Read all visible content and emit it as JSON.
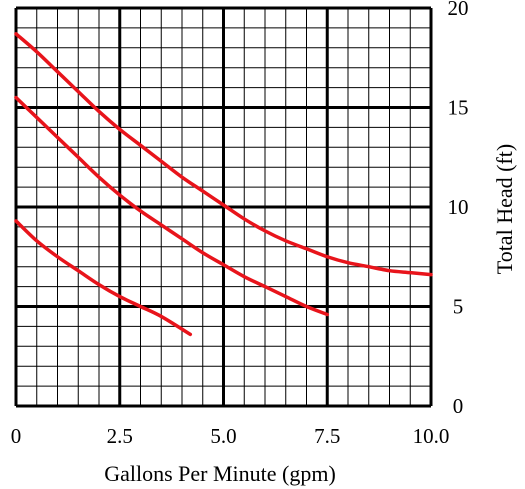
{
  "chart_data": {
    "type": "line",
    "xlabel": "Gallons Per Minute (gpm)",
    "ylabel": "Total Head (ft)",
    "xlim": [
      0,
      10
    ],
    "ylim": [
      0,
      20
    ],
    "x_ticks": [
      "0",
      "2.5",
      "5.0",
      "7.5",
      "10.0"
    ],
    "y_ticks": [
      "0",
      "5",
      "10",
      "15",
      "20"
    ],
    "grid": true,
    "line_color": "#e8141b",
    "series": [
      {
        "x": [
          0,
          0.5,
          1.0,
          1.5,
          2.0,
          2.5,
          3.0,
          3.5,
          4.0,
          4.5,
          5.0,
          5.5,
          6.0,
          6.5,
          7.0,
          7.5,
          8.0,
          8.5,
          9.0,
          9.5,
          10.0
        ],
        "y": [
          18.7,
          17.8,
          16.8,
          15.8,
          14.8,
          13.9,
          13.1,
          12.3,
          11.5,
          10.8,
          10.1,
          9.4,
          8.8,
          8.3,
          7.9,
          7.5,
          7.2,
          7.0,
          6.8,
          6.7,
          6.6
        ]
      },
      {
        "x": [
          0,
          0.5,
          1.0,
          1.5,
          2.0,
          2.5,
          3.0,
          3.5,
          4.0,
          4.5,
          5.0,
          5.5,
          6.0,
          6.5,
          7.0,
          7.5
        ],
        "y": [
          15.5,
          14.5,
          13.5,
          12.5,
          11.5,
          10.6,
          9.8,
          9.1,
          8.4,
          7.7,
          7.1,
          6.5,
          6.0,
          5.5,
          5.0,
          4.6
        ]
      },
      {
        "x": [
          0,
          0.5,
          1.0,
          1.5,
          2.0,
          2.5,
          3.0,
          3.5,
          4.2
        ],
        "y": [
          9.3,
          8.3,
          7.5,
          6.8,
          6.1,
          5.5,
          5.0,
          4.5,
          3.6
        ]
      }
    ]
  }
}
